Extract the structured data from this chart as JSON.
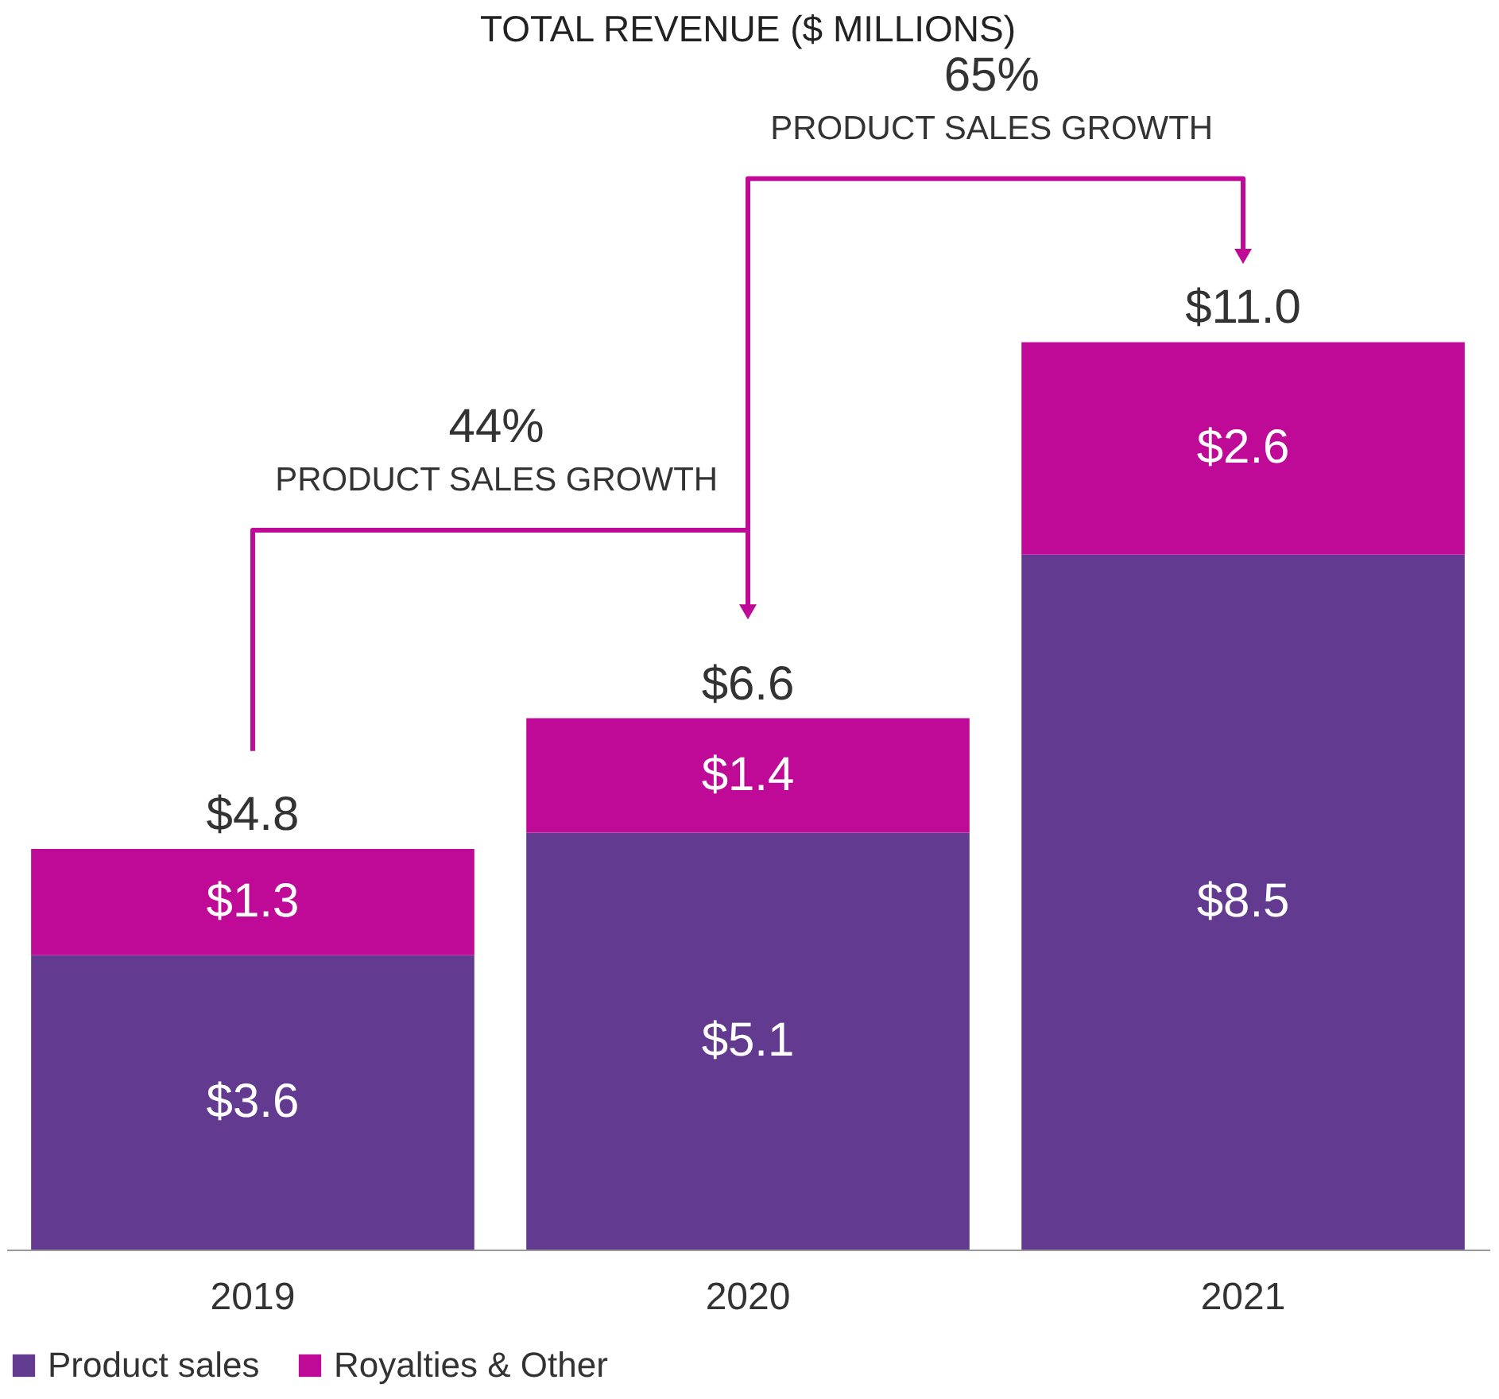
{
  "chart_data": {
    "type": "bar",
    "title": "TOTAL REVENUE ($ MILLIONS)",
    "stacked": true,
    "categories": [
      "2019",
      "2020",
      "2021"
    ],
    "series": [
      {
        "name": "Product sales",
        "color": "#623a8f",
        "values": [
          3.6,
          5.1,
          8.5
        ],
        "value_labels": [
          "$3.6",
          "$5.1",
          "$8.5"
        ]
      },
      {
        "name": "Royalties & Other",
        "color": "#be0a96",
        "values": [
          1.3,
          1.4,
          2.6
        ],
        "value_labels": [
          "$1.3",
          "$1.4",
          "$2.6"
        ]
      }
    ],
    "totals": [
      "$4.8",
      "$6.6",
      "$11.0"
    ],
    "annotations": [
      "44%",
      "PRODUCT SALES GROWTH",
      "65%",
      "PRODUCT SALES GROWTH"
    ],
    "legend": "bottom",
    "grid": false
  }
}
